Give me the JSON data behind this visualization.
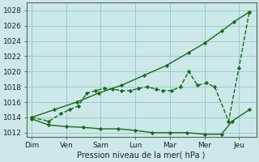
{
  "xlabel": "Pression niveau de la mer( hPa )",
  "background_color": "#cce8e8",
  "grid_color": "#99cccc",
  "line_color": "#1a6b1a",
  "ylim": [
    1011.5,
    1029
  ],
  "xlim": [
    -0.15,
    6.5
  ],
  "days": [
    "Dim",
    "Ven",
    "Sam",
    "Lun",
    "Mar",
    "Mer",
    "Jeu"
  ],
  "day_positions": [
    0,
    1,
    2,
    3,
    4,
    5,
    6
  ],
  "yticks": [
    1012,
    1014,
    1016,
    1018,
    1020,
    1022,
    1024,
    1026,
    1028
  ],
  "line1_x": [
    0,
    0.5,
    0.85,
    1.1,
    1.35,
    1.6,
    1.85,
    2.1,
    2.35,
    2.6,
    2.85,
    3.1,
    3.35,
    3.6,
    3.8,
    4.05,
    4.3,
    4.55,
    4.8,
    5.05,
    5.3,
    5.7,
    6.0,
    6.3
  ],
  "line1_y": [
    1014.0,
    1013.5,
    1014.5,
    1015.0,
    1015.5,
    1017.2,
    1017.5,
    1017.8,
    1017.7,
    1017.5,
    1017.5,
    1017.8,
    1018.0,
    1017.7,
    1017.5,
    1017.5,
    1018.0,
    1020.0,
    1018.2,
    1018.5,
    1018.0,
    1013.5,
    1020.5,
    1027.8
  ],
  "line2_x": [
    0,
    0.65,
    1.3,
    1.95,
    2.6,
    3.25,
    3.9,
    4.55,
    5.0,
    5.5,
    5.85,
    6.3
  ],
  "line2_y": [
    1014.0,
    1015.0,
    1016.0,
    1017.2,
    1018.2,
    1019.5,
    1020.8,
    1022.5,
    1023.7,
    1025.3,
    1026.5,
    1027.8
  ],
  "line3_x": [
    0,
    0.5,
    1.0,
    1.5,
    2.0,
    2.5,
    3.0,
    3.5,
    4.0,
    4.5,
    5.0,
    5.5,
    5.8,
    6.3
  ],
  "line3_y": [
    1013.8,
    1013.0,
    1012.8,
    1012.7,
    1012.5,
    1012.5,
    1012.3,
    1012.0,
    1012.0,
    1012.0,
    1011.8,
    1011.8,
    1013.5,
    1015.0
  ]
}
